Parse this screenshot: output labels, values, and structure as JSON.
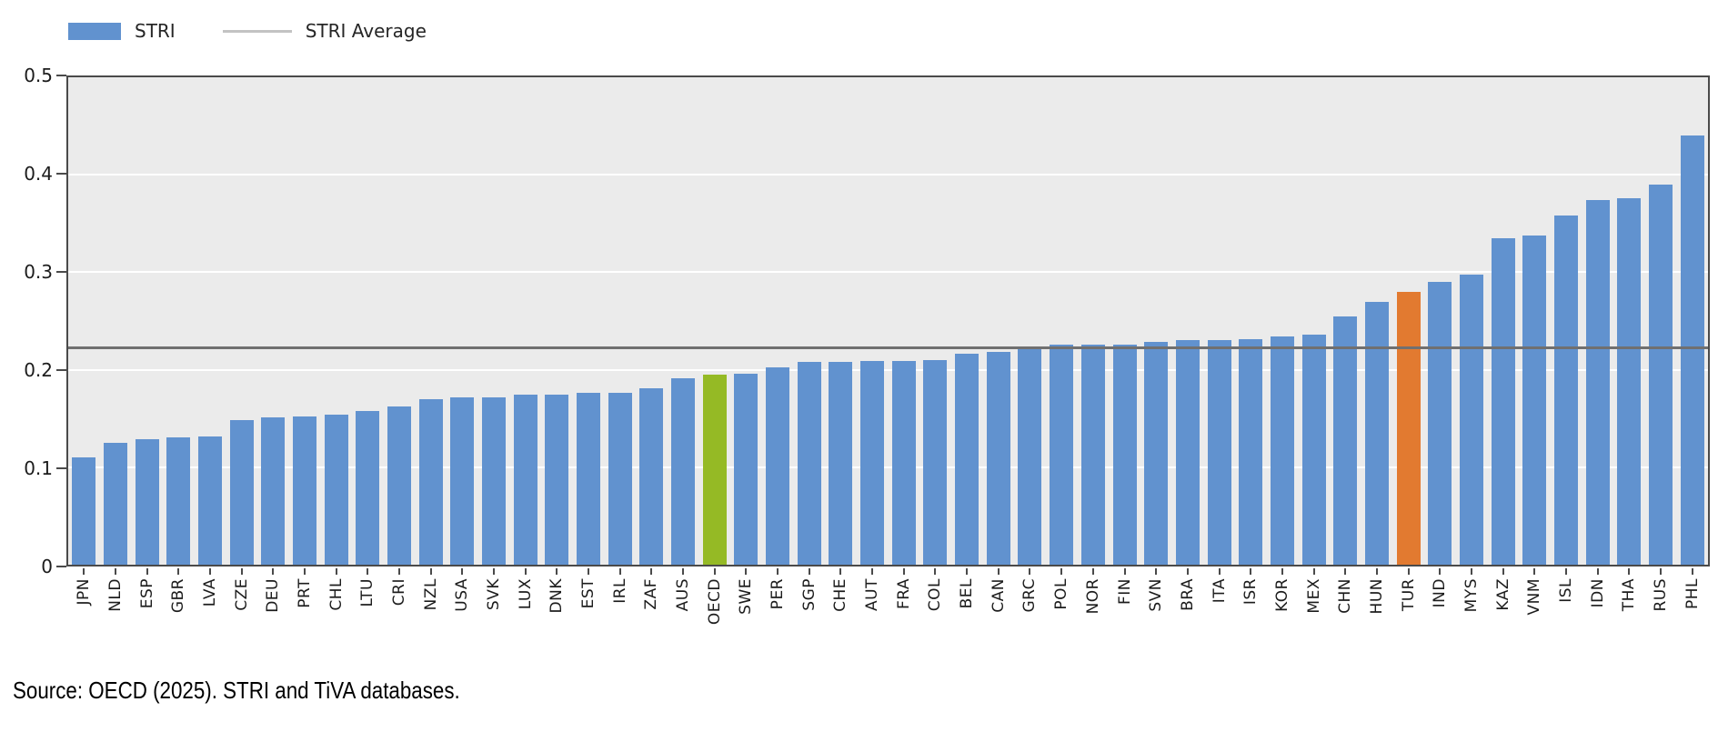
{
  "legend": {
    "stri_label": "STRI",
    "average_label": "STRI Average"
  },
  "source_text": "Source: OECD (2025). STRI and TiVA databases.",
  "colors": {
    "bar_default": "#6192cf",
    "oecd_bar": "#95ba25",
    "turkey_bar": "#e27a30",
    "average_line": "#707070",
    "legend_line_swatch": "#c3c3c3",
    "plot_background": "#ebebeb",
    "gridline": "#ffffff",
    "axis_spine": "#4a4a4a"
  },
  "chart_data": {
    "type": "bar",
    "title": "",
    "xlabel": "",
    "ylabel": "",
    "ylim": [
      0,
      0.5
    ],
    "yticks": [
      0,
      0.1,
      0.2,
      0.3,
      0.4,
      0.5
    ],
    "ytick_labels": [
      "0",
      "0.1",
      "0.2",
      "0.3",
      "0.4",
      "0.5"
    ],
    "grid": "horizontal white gridlines on light gray panel",
    "legend_position": "top-left",
    "legend_entries": [
      "STRI",
      "STRI Average"
    ],
    "average_line_value": 0.222,
    "categories": [
      "JPN",
      "NLD",
      "ESP",
      "GBR",
      "LVA",
      "CZE",
      "DEU",
      "PRT",
      "CHL",
      "LTU",
      "CRI",
      "NZL",
      "USA",
      "SVK",
      "LUX",
      "DNK",
      "EST",
      "IRL",
      "ZAF",
      "AUS",
      "OECD",
      "SWE",
      "PER",
      "SGP",
      "CHE",
      "AUT",
      "FRA",
      "COL",
      "BEL",
      "CAN",
      "GRC",
      "POL",
      "NOR",
      "FIN",
      "SVN",
      "BRA",
      "ITA",
      "ISR",
      "KOR",
      "MEX",
      "CHN",
      "HUN",
      "TUR",
      "IND",
      "MYS",
      "KAZ",
      "VNM",
      "ISL",
      "IDN",
      "THA",
      "RUS",
      "PHL"
    ],
    "values": [
      0.11,
      0.125,
      0.129,
      0.131,
      0.132,
      0.148,
      0.151,
      0.152,
      0.154,
      0.158,
      0.162,
      0.17,
      0.172,
      0.172,
      0.174,
      0.174,
      0.176,
      0.176,
      0.181,
      0.191,
      0.195,
      0.196,
      0.202,
      0.208,
      0.208,
      0.209,
      0.209,
      0.21,
      0.216,
      0.218,
      0.224,
      0.226,
      0.226,
      0.226,
      0.229,
      0.23,
      0.23,
      0.231,
      0.234,
      0.236,
      0.255,
      0.27,
      0.28,
      0.29,
      0.298,
      0.335,
      0.338,
      0.358,
      0.374,
      0.376,
      0.39,
      0.44
    ],
    "highlights": [
      {
        "category": "OECD",
        "color": "#95ba25"
      },
      {
        "category": "TUR",
        "color": "#e27a30"
      }
    ]
  }
}
